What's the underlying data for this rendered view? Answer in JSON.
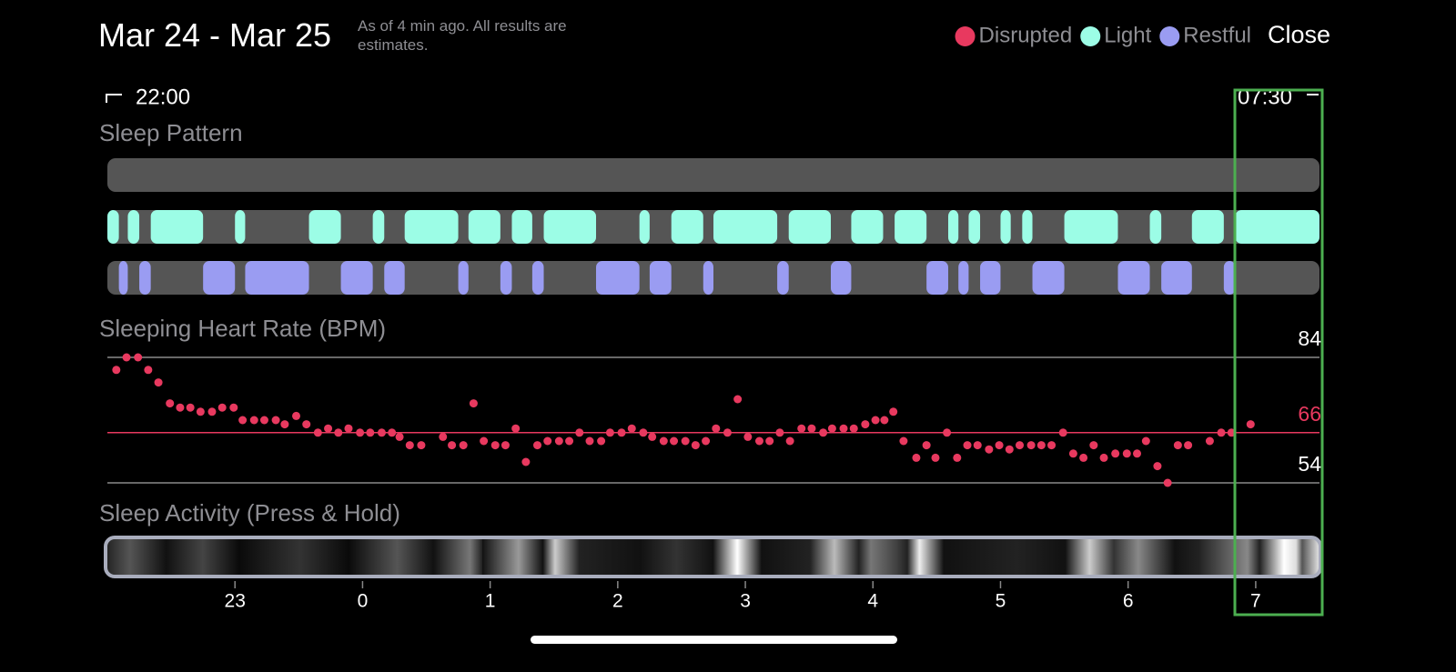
{
  "header": {
    "title": "Mar 24 - Mar 25",
    "subtitle": "As of 4 min ago. All results are estimates.",
    "close": "Close"
  },
  "legend": [
    {
      "name": "Disrupted",
      "color": "#e8395f"
    },
    {
      "name": "Light",
      "color": "#9cfde6"
    },
    {
      "name": "Restful",
      "color": "#9a9cf2"
    }
  ],
  "time_range": {
    "start": "22:00",
    "end": "07:30"
  },
  "time_axis": {
    "xlim": [
      22,
      31.5
    ],
    "xticks": [
      23,
      {
        "value": 24,
        "label": "0"
      },
      {
        "value": 25,
        "label": "1"
      },
      {
        "value": 26,
        "label": "2"
      },
      {
        "value": 27,
        "label": "3"
      },
      {
        "value": 28,
        "label": "4"
      },
      {
        "value": 29,
        "label": "5"
      },
      {
        "value": 30,
        "label": "6"
      },
      {
        "value": 31,
        "label": "7"
      }
    ]
  },
  "sleep_pattern": {
    "title": "Sleep Pattern",
    "light": [
      [
        22.0,
        22.09
      ],
      [
        22.16,
        22.25
      ],
      [
        22.34,
        22.75
      ],
      [
        23.0,
        23.08
      ],
      [
        23.58,
        23.83
      ],
      [
        24.08,
        24.17
      ],
      [
        24.33,
        24.75
      ],
      [
        24.83,
        25.08
      ],
      [
        25.17,
        25.33
      ],
      [
        25.42,
        25.83
      ],
      [
        26.17,
        26.25
      ],
      [
        26.42,
        26.67
      ],
      [
        26.75,
        27.25
      ],
      [
        27.34,
        27.67
      ],
      [
        27.83,
        28.08
      ],
      [
        28.17,
        28.42
      ],
      [
        28.59,
        28.67
      ],
      [
        28.75,
        28.84
      ],
      [
        29.0,
        29.08
      ],
      [
        29.17,
        29.25
      ],
      [
        29.5,
        29.92
      ],
      [
        30.17,
        30.26
      ],
      [
        30.5,
        30.75
      ],
      [
        30.84,
        31.5
      ]
    ],
    "restful": [
      [
        22.09,
        22.16
      ],
      [
        22.25,
        22.34
      ],
      [
        22.75,
        23.0
      ],
      [
        23.08,
        23.58
      ],
      [
        23.83,
        24.08
      ],
      [
        24.17,
        24.33
      ],
      [
        24.75,
        24.83
      ],
      [
        25.08,
        25.17
      ],
      [
        25.33,
        25.42
      ],
      [
        25.83,
        26.17
      ],
      [
        26.25,
        26.42
      ],
      [
        26.67,
        26.75
      ],
      [
        27.25,
        27.34
      ],
      [
        27.67,
        27.83
      ],
      [
        28.42,
        28.59
      ],
      [
        28.67,
        28.75
      ],
      [
        28.84,
        29.0
      ],
      [
        29.25,
        29.5
      ],
      [
        29.92,
        30.17
      ],
      [
        30.26,
        30.5
      ],
      [
        30.75,
        30.84
      ]
    ]
  },
  "heart_rate": {
    "type": "scatter",
    "title": "Sleeping Heart Rate (BPM)",
    "color": "#e8395f",
    "ylim": [
      54,
      84
    ],
    "yticks": [
      84,
      54
    ],
    "average_line": {
      "value": 66,
      "color": "#e8395f"
    },
    "x": [
      22.07,
      22.15,
      22.24,
      22.32,
      22.4,
      22.49,
      22.57,
      22.65,
      22.73,
      22.82,
      22.9,
      22.99,
      23.06,
      23.15,
      23.23,
      23.32,
      23.39,
      23.48,
      23.56,
      23.65,
      23.73,
      23.81,
      23.89,
      23.98,
      24.06,
      24.15,
      24.23,
      24.29,
      24.37,
      24.46,
      24.63,
      24.7,
      24.79,
      24.87,
      24.95,
      25.04,
      25.12,
      25.2,
      25.28,
      25.37,
      25.45,
      25.54,
      25.62,
      25.7,
      25.78,
      25.87,
      25.94,
      26.03,
      26.11,
      26.2,
      26.27,
      26.36,
      26.44,
      26.53,
      26.61,
      26.69,
      26.77,
      26.86,
      26.94,
      27.02,
      27.11,
      27.19,
      27.27,
      27.35,
      27.44,
      27.52,
      27.61,
      27.68,
      27.77,
      27.85,
      27.94,
      28.02,
      28.09,
      28.16,
      28.24,
      28.34,
      28.42,
      28.49,
      28.58,
      28.66,
      28.74,
      28.82,
      28.91,
      28.99,
      29.07,
      29.15,
      29.24,
      29.32,
      29.4,
      29.49,
      29.57,
      29.65,
      29.73,
      29.81,
      29.9,
      29.99,
      30.07,
      30.14,
      30.23,
      30.31,
      30.39,
      30.47,
      30.64,
      30.73,
      30.81,
      30.96
    ],
    "values": [
      81,
      84,
      84,
      81,
      78,
      73,
      72,
      72,
      71,
      71,
      72,
      72,
      69,
      69,
      69,
      69,
      68,
      70,
      68,
      66,
      67,
      66,
      67,
      66,
      66,
      66,
      66,
      65,
      63,
      63,
      65,
      63,
      63,
      73,
      64,
      63,
      63,
      67,
      59,
      63,
      64,
      64,
      64,
      66,
      64,
      64,
      66,
      66,
      67,
      66,
      65,
      64,
      64,
      64,
      63,
      64,
      67,
      66,
      74,
      65,
      64,
      64,
      66,
      64,
      67,
      67,
      66,
      67,
      67,
      67,
      68,
      69,
      69,
      71,
      64,
      60,
      63,
      60,
      66,
      60,
      63,
      63,
      62,
      63,
      62,
      63,
      63,
      63,
      63,
      66,
      61,
      60,
      63,
      60,
      61,
      61,
      61,
      64,
      58,
      54,
      63,
      63,
      64,
      66,
      66,
      68
    ]
  },
  "sleep_activity": {
    "title": "Sleep Activity (Press & Hold)"
  }
}
